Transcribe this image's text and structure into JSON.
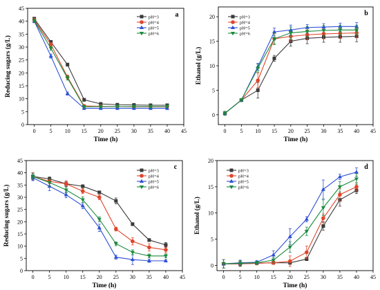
{
  "chart_data": [
    {
      "panel": "a",
      "type": "line",
      "xlabel": "Time (h)",
      "ylabel": "Reducing sugars (g/L)",
      "xlim": [
        -2,
        45
      ],
      "ylim": [
        0,
        45
      ],
      "xticks": [
        0,
        5,
        10,
        15,
        20,
        25,
        30,
        35,
        40,
        45
      ],
      "yticks": [
        0,
        5,
        10,
        15,
        20,
        25,
        30,
        35,
        40,
        45
      ],
      "legend_position": "top-right",
      "x": [
        0,
        5,
        10,
        15,
        20,
        25,
        30,
        35,
        40
      ],
      "series": [
        {
          "name": "pH=3",
          "color": "#3a3a3a",
          "marker": "square",
          "values": [
            41.0,
            32.0,
            23.2,
            9.6,
            8.0,
            7.7,
            7.6,
            7.5,
            7.5
          ],
          "errors": [
            0.5,
            0.6,
            0.6,
            0.6,
            0.5,
            0.5,
            0.5,
            0.5,
            0.5
          ]
        },
        {
          "name": "pH=4",
          "color": "#e0452b",
          "marker": "circle",
          "values": [
            40.5,
            31.0,
            18.4,
            7.2,
            7.1,
            7.0,
            6.9,
            6.9,
            6.9
          ],
          "errors": [
            0.6,
            0.7,
            0.8,
            0.6,
            0.5,
            0.5,
            0.5,
            0.5,
            0.5
          ]
        },
        {
          "name": "pH=5",
          "color": "#2e4fd6",
          "marker": "triangle",
          "values": [
            40.0,
            26.5,
            12.0,
            6.3,
            6.3,
            6.3,
            6.3,
            6.3,
            6.3
          ],
          "errors": [
            0.6,
            0.8,
            0.6,
            0.5,
            0.5,
            0.5,
            0.5,
            0.5,
            0.5
          ]
        },
        {
          "name": "pH=6",
          "color": "#1b8a3e",
          "marker": "inverted-triangle",
          "values": [
            40.2,
            29.5,
            18.0,
            6.9,
            7.0,
            7.0,
            7.0,
            7.0,
            7.0
          ],
          "errors": [
            0.6,
            0.7,
            0.8,
            0.5,
            0.5,
            0.5,
            0.5,
            0.5,
            0.5
          ]
        }
      ]
    },
    {
      "panel": "b",
      "type": "line",
      "xlabel": "Time (h)",
      "ylabel": "Ethanol (g/L)",
      "xlim": [
        -2,
        45
      ],
      "ylim": [
        -2,
        22
      ],
      "xticks": [
        0,
        5,
        10,
        15,
        20,
        25,
        30,
        35,
        40,
        45
      ],
      "yticks": [
        0,
        5,
        10,
        15,
        20
      ],
      "legend_position": "top-left",
      "x": [
        0,
        5,
        10,
        15,
        20,
        25,
        30,
        35,
        40
      ],
      "series": [
        {
          "name": "pH=3",
          "color": "#3a3a3a",
          "marker": "square",
          "values": [
            0.3,
            3.0,
            5.0,
            11.5,
            15.0,
            15.6,
            15.8,
            15.9,
            16.0
          ],
          "errors": [
            0.4,
            0.3,
            1.6,
            0.6,
            1.0,
            1.1,
            1.0,
            1.1,
            1.1
          ]
        },
        {
          "name": "pH=4",
          "color": "#e0452b",
          "marker": "circle",
          "values": [
            0.3,
            3.0,
            7.0,
            15.5,
            16.0,
            16.3,
            16.5,
            16.6,
            16.7
          ],
          "errors": [
            0.4,
            0.3,
            1.5,
            1.0,
            1.0,
            1.0,
            1.0,
            1.0,
            1.0
          ]
        },
        {
          "name": "pH=5",
          "color": "#2e4fd6",
          "marker": "triangle",
          "values": [
            0.3,
            3.0,
            9.8,
            16.9,
            17.3,
            17.8,
            17.9,
            18.0,
            18.0
          ],
          "errors": [
            0.4,
            0.3,
            0.7,
            0.8,
            1.0,
            0.6,
            0.7,
            0.7,
            0.8
          ]
        },
        {
          "name": "pH=6",
          "color": "#1b8a3e",
          "marker": "inverted-triangle",
          "values": [
            0.3,
            3.0,
            9.5,
            15.5,
            16.7,
            17.0,
            17.2,
            17.3,
            17.3
          ],
          "errors": [
            0.4,
            0.3,
            0.8,
            1.2,
            1.2,
            1.0,
            1.0,
            1.0,
            1.0
          ]
        }
      ]
    },
    {
      "panel": "c",
      "type": "line",
      "xlabel": "Time (h)",
      "ylabel": "Reducing sugars (g/L)",
      "xlim": [
        -2,
        45
      ],
      "ylim": [
        0,
        45
      ],
      "xticks": [
        0,
        5,
        10,
        15,
        20,
        25,
        30,
        35,
        40,
        45
      ],
      "yticks": [
        0,
        5,
        10,
        15,
        20,
        25,
        30,
        35,
        40,
        45
      ],
      "legend_position": "top-right",
      "x": [
        0,
        5,
        10,
        15,
        20,
        25,
        30,
        35,
        40
      ],
      "series": [
        {
          "name": "pH=3",
          "color": "#3a3a3a",
          "marker": "square",
          "values": [
            38.5,
            37.5,
            35.5,
            34.5,
            32.0,
            28.5,
            19.0,
            12.5,
            10.5
          ],
          "errors": [
            1.5,
            0.8,
            1.0,
            0.6,
            0.5,
            1.2,
            0.6,
            0.6,
            1.0
          ]
        },
        {
          "name": "pH=4",
          "color": "#e0452b",
          "marker": "circle",
          "values": [
            38.5,
            36.5,
            35.5,
            32.5,
            30.0,
            17.0,
            12.0,
            9.5,
            8.5
          ],
          "errors": [
            1.5,
            1.0,
            1.2,
            1.0,
            1.0,
            0.8,
            1.5,
            1.5,
            1.2
          ]
        },
        {
          "name": "pH=5",
          "color": "#2e4fd6",
          "marker": "triangle",
          "values": [
            38.0,
            34.5,
            31.0,
            26.5,
            17.5,
            5.5,
            4.5,
            4.0,
            4.0
          ],
          "errors": [
            1.2,
            1.8,
            1.2,
            1.2,
            1.5,
            0.8,
            2.0,
            0.6,
            0.5
          ]
        },
        {
          "name": "pH=6",
          "color": "#1b8a3e",
          "marker": "inverted-triangle",
          "values": [
            38.5,
            36.0,
            33.0,
            29.0,
            21.0,
            11.0,
            7.5,
            6.0,
            6.0
          ],
          "errors": [
            1.2,
            1.5,
            1.2,
            1.2,
            1.0,
            0.8,
            1.0,
            0.8,
            0.8
          ]
        }
      ]
    },
    {
      "panel": "d",
      "type": "line",
      "xlabel": "Time (h)",
      "ylabel": "Ethanol (g/L)",
      "xlim": [
        -2,
        45
      ],
      "ylim": [
        -1,
        20
      ],
      "xticks": [
        0,
        5,
        10,
        15,
        20,
        25,
        30,
        35,
        40,
        45
      ],
      "yticks": [
        0,
        5,
        10,
        15,
        20
      ],
      "legend_position": "top-left",
      "x": [
        0,
        5,
        10,
        15,
        20,
        25,
        30,
        35,
        40
      ],
      "series": [
        {
          "name": "pH=3",
          "color": "#3a3a3a",
          "marker": "square",
          "values": [
            0.3,
            0.3,
            0.4,
            0.5,
            0.5,
            1.2,
            7.5,
            12.5,
            14.3
          ],
          "errors": [
            0.8,
            0.5,
            0.3,
            0.3,
            0.3,
            0.3,
            0.8,
            1.2,
            0.6
          ]
        },
        {
          "name": "pH=4",
          "color": "#e0452b",
          "marker": "circle",
          "values": [
            0.3,
            0.3,
            0.4,
            0.5,
            0.8,
            2.5,
            9.0,
            13.5,
            15.0
          ],
          "errors": [
            0.8,
            0.5,
            0.3,
            0.3,
            1.0,
            1.2,
            0.8,
            1.2,
            0.8
          ]
        },
        {
          "name": "pH=5",
          "color": "#2e4fd6",
          "marker": "triangle",
          "values": [
            0.3,
            0.5,
            0.6,
            2.0,
            5.5,
            8.8,
            14.5,
            16.9,
            17.8
          ],
          "errors": [
            0.8,
            0.5,
            0.3,
            0.8,
            1.5,
            0.5,
            1.8,
            0.5,
            0.8
          ]
        },
        {
          "name": "pH=6",
          "color": "#1b8a3e",
          "marker": "inverted-triangle",
          "values": [
            0.3,
            0.4,
            0.5,
            1.0,
            3.5,
            6.5,
            11.0,
            15.0,
            16.5
          ],
          "errors": [
            0.8,
            0.5,
            0.3,
            0.5,
            1.0,
            0.8,
            1.5,
            1.0,
            1.0
          ]
        }
      ]
    }
  ]
}
